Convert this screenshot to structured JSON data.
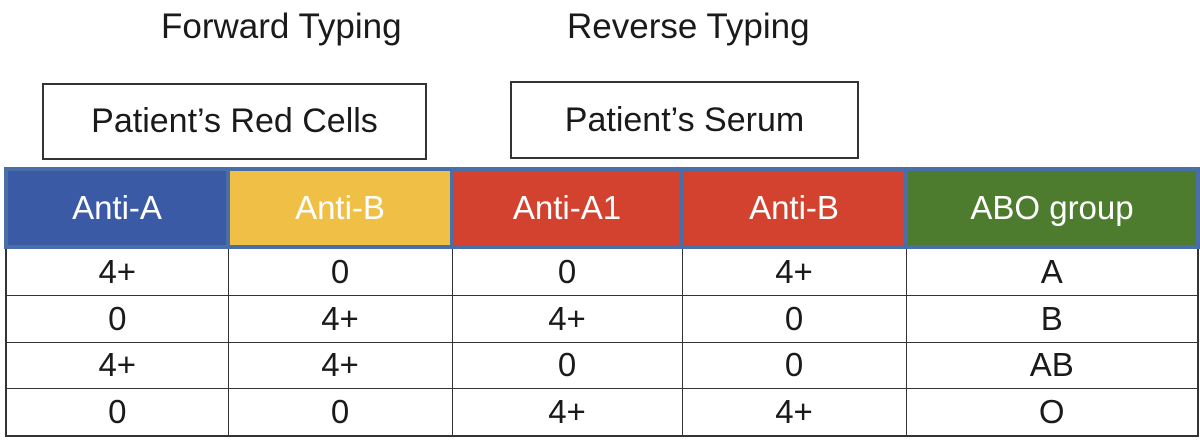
{
  "headings": {
    "forward": "Forward Typing",
    "reverse": "Reverse Typing"
  },
  "boxes": {
    "red_cells": "Patient’s Red Cells",
    "serum": "Patient’s Serum"
  },
  "table": {
    "columns": [
      {
        "label": "Anti-A",
        "color": "#3a5aa6"
      },
      {
        "label": "Anti-B",
        "color": "#f0bf45"
      },
      {
        "label": "Anti-A1",
        "color": "#d2422f"
      },
      {
        "label": "Anti-B",
        "color": "#d2422f"
      },
      {
        "label": "ABO group",
        "color": "#4e7c2f"
      }
    ],
    "rows": [
      [
        "4+",
        "0",
        "0",
        "4+",
        "A"
      ],
      [
        "0",
        "4+",
        "4+",
        "0",
        "B"
      ],
      [
        "4+",
        "4+",
        "0",
        "0",
        "AB"
      ],
      [
        "0",
        "0",
        "4+",
        "4+",
        "O"
      ]
    ]
  }
}
